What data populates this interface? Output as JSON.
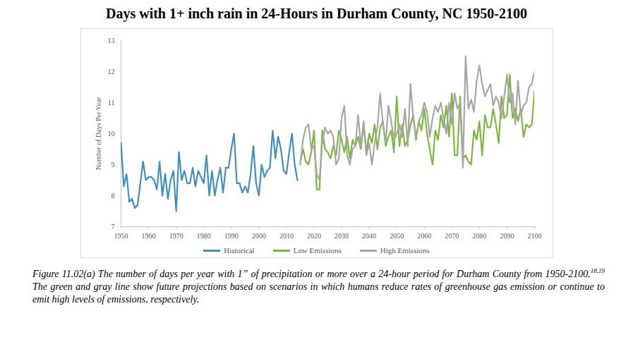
{
  "chart_data": {
    "type": "line",
    "title": "Days with 1+ inch rain in 24-Hours in Durham County, NC 1950-2100",
    "y_label": "Number of Days Per Year",
    "caption": [
      "Figure 11.02(a) The number of days per year with 1” of precipitation or more over a 24-hour period for Durham County from 1950-2100.",
      "18,19",
      " The green and gray line show future projections based on scenarios in which humans reduce rates of greenhouse gas emission or continue to emit high levels of emissions, respectively."
    ],
    "x": [
      1950,
      1951,
      1952,
      1953,
      1954,
      1955,
      1956,
      1957,
      1958,
      1959,
      1960,
      1961,
      1962,
      1963,
      1964,
      1965,
      1966,
      1967,
      1968,
      1969,
      1970,
      1971,
      1972,
      1973,
      1974,
      1975,
      1976,
      1977,
      1978,
      1979,
      1980,
      1981,
      1982,
      1983,
      1984,
      1985,
      1986,
      1987,
      1988,
      1989,
      1990,
      1991,
      1992,
      1993,
      1994,
      1995,
      1996,
      1997,
      1998,
      1999,
      2000,
      2001,
      2002,
      2003,
      2004,
      2005,
      2006,
      2007,
      2008,
      2009,
      2010,
      2011,
      2012,
      2013,
      2014,
      2015,
      2016,
      2017,
      2018,
      2019,
      2020,
      2021,
      2022,
      2023,
      2024,
      2025,
      2026,
      2027,
      2028,
      2029,
      2030,
      2031,
      2032,
      2033,
      2034,
      2035,
      2036,
      2037,
      2038,
      2039,
      2040,
      2041,
      2042,
      2043,
      2044,
      2045,
      2046,
      2047,
      2048,
      2049,
      2050,
      2051,
      2052,
      2053,
      2054,
      2055,
      2056,
      2057,
      2058,
      2059,
      2060,
      2061,
      2062,
      2063,
      2064,
      2065,
      2066,
      2067,
      2068,
      2069,
      2070,
      2071,
      2072,
      2073,
      2074,
      2075,
      2076,
      2077,
      2078,
      2079,
      2080,
      2081,
      2082,
      2083,
      2084,
      2085,
      2086,
      2087,
      2088,
      2089,
      2090,
      2091,
      2092,
      2093,
      2094,
      2095,
      2096,
      2097,
      2098,
      2099,
      2100
    ],
    "series": [
      {
        "name": "Historical",
        "color": "#3f8fc6",
        "values": [
          9.7,
          8.3,
          8.7,
          7.8,
          7.9,
          7.6,
          7.7,
          8.4,
          9.1,
          8.5,
          8.6,
          8.6,
          8.5,
          8.2,
          9.1,
          8.0,
          8.7,
          7.9,
          8.5,
          8.8,
          7.5,
          9.4,
          8.5,
          8.8,
          8.4,
          8.4,
          8.9,
          8.3,
          8.8,
          8.6,
          8.4,
          9.3,
          8.0,
          8.8,
          8.0,
          8.5,
          8.9,
          8.1,
          8.9,
          8.9,
          9.5,
          10.0,
          8.4,
          8.4,
          8.1,
          8.3,
          8.1,
          8.7,
          9.6,
          8.4,
          8.0,
          9.0,
          8.6,
          8.8,
          8.9,
          10.1,
          9.2,
          9.9,
          9.5,
          8.8,
          8.7,
          9.4,
          10.0,
          9.0,
          8.5,
          null,
          null,
          null,
          null,
          null,
          null,
          null,
          null,
          null,
          null,
          null,
          null,
          null,
          null,
          null,
          null,
          null,
          null,
          null,
          null,
          null,
          null,
          null,
          null,
          null,
          null,
          null,
          null,
          null,
          null,
          null,
          null,
          null,
          null,
          null,
          null,
          null,
          null,
          null,
          null,
          null,
          null,
          null,
          null,
          null,
          null,
          null,
          null,
          null,
          null,
          null,
          null,
          null,
          null,
          null,
          null,
          null,
          null,
          null,
          null,
          null,
          null,
          null,
          null,
          null,
          null,
          null,
          null,
          null,
          null,
          null,
          null,
          null,
          null,
          null,
          null,
          null,
          null,
          null,
          null,
          null,
          null,
          null,
          null,
          null,
          null
        ]
      },
      {
        "name": "Low Emissions",
        "color": "#7aba3a",
        "values": [
          null,
          null,
          null,
          null,
          null,
          null,
          null,
          null,
          null,
          null,
          null,
          null,
          null,
          null,
          null,
          null,
          null,
          null,
          null,
          null,
          null,
          null,
          null,
          null,
          null,
          null,
          null,
          null,
          null,
          null,
          null,
          null,
          null,
          null,
          null,
          null,
          null,
          null,
          null,
          null,
          null,
          null,
          null,
          null,
          null,
          null,
          null,
          null,
          null,
          null,
          null,
          null,
          null,
          null,
          null,
          null,
          null,
          null,
          null,
          null,
          null,
          null,
          null,
          null,
          null,
          9.1,
          9.5,
          9.1,
          9.0,
          9.4,
          10.1,
          8.2,
          8.2,
          10.1,
          9.5,
          9.4,
          9.2,
          9.6,
          9.3,
          10.1,
          9.8,
          9.4,
          9.9,
          9.2,
          9.8,
          9.6,
          9.9,
          9.5,
          10.3,
          9.4,
          10.0,
          9.7,
          10.3,
          9.5,
          10.2,
          10.4,
          9.6,
          9.9,
          10.1,
          9.4,
          11.2,
          9.6,
          10.3,
          9.6,
          9.8,
          10.3,
          10.6,
          9.8,
          10.4,
          10.1,
          10.8,
          10.0,
          9.5,
          9.0,
          10.1,
          9.8,
          10.6,
          10.2,
          10.9,
          9.9,
          11.3,
          9.3,
          9.3,
          11.2,
          9.2,
          9.3,
          9.1,
          9.0,
          10.1,
          9.8,
          10.4,
          9.3,
          10.6,
          10.2,
          10.2,
          10.8,
          10.3,
          9.7,
          11.2,
          10.5,
          10.6,
          11.9,
          10.5,
          10.8,
          10.4,
          10.8,
          9.9,
          10.3,
          10.2,
          10.3,
          11.4
        ]
      },
      {
        "name": "High Emissions",
        "color": "#a6a6a6",
        "values": [
          null,
          null,
          null,
          null,
          null,
          null,
          null,
          null,
          null,
          null,
          null,
          null,
          null,
          null,
          null,
          null,
          null,
          null,
          null,
          null,
          null,
          null,
          null,
          null,
          null,
          null,
          null,
          null,
          null,
          null,
          null,
          null,
          null,
          null,
          null,
          null,
          null,
          null,
          null,
          null,
          null,
          null,
          null,
          null,
          null,
          null,
          null,
          null,
          null,
          null,
          null,
          null,
          null,
          null,
          null,
          null,
          null,
          null,
          null,
          null,
          null,
          null,
          null,
          null,
          null,
          9.0,
          9.8,
          10.2,
          10.3,
          9.5,
          9.6,
          8.7,
          8.5,
          9.7,
          10.2,
          10.0,
          10.1,
          9.9,
          9.0,
          9.2,
          10.5,
          10.9,
          9.3,
          9.0,
          9.5,
          9.6,
          10.6,
          9.6,
          10.4,
          9.3,
          9.7,
          9.0,
          9.7,
          10.2,
          11.3,
          10.3,
          9.7,
          10.9,
          10.4,
          9.8,
          10.0,
          10.3,
          9.9,
          10.8,
          9.6,
          11.6,
          10.5,
          9.9,
          10.4,
          10.6,
          11.0,
          10.7,
          9.9,
          10.5,
          10.9,
          10.7,
          11.0,
          10.5,
          10.0,
          11.0,
          10.3,
          11.3,
          10.8,
          11.0,
          8.9,
          12.5,
          10.8,
          11.1,
          10.7,
          11.7,
          12.2,
          11.6,
          11.2,
          11.4,
          11.6,
          10.9,
          11.2,
          11.0,
          10.5,
          11.2,
          11.9,
          11.0,
          11.3,
          10.3,
          11.7,
          10.6,
          10.9,
          11.0,
          11.5,
          11.6,
          12.0
        ]
      }
    ],
    "xlim": [
      1950,
      2100
    ],
    "xticks": [
      1950,
      1960,
      1970,
      1980,
      1990,
      2000,
      2010,
      2020,
      2030,
      2040,
      2050,
      2060,
      2070,
      2080,
      2090,
      2100
    ],
    "ylim": [
      7,
      13
    ],
    "yticks": [
      7,
      8,
      9,
      10,
      11,
      12,
      13
    ],
    "grid": false,
    "legend": "bottom"
  }
}
